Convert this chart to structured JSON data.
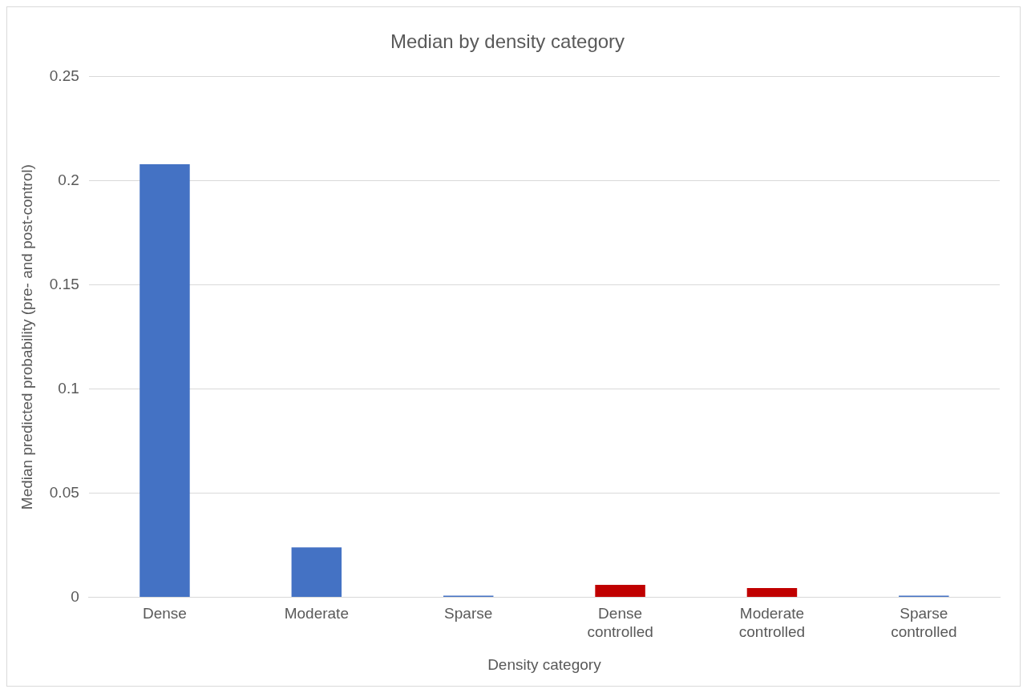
{
  "chart_data": {
    "type": "bar",
    "title": "Median by density category",
    "xlabel": "Density category",
    "ylabel": "Median predicted probability (pre- and post-control)",
    "categories": [
      "Dense",
      "Moderate",
      "Sparse",
      "Dense controlled",
      "Moderate controlled",
      "Sparse controlled"
    ],
    "values": [
      0.208,
      0.024,
      0.0008,
      0.006,
      0.0045,
      0.0008
    ],
    "colors": [
      "#4472c4",
      "#4472c4",
      "#4472c4",
      "#c00000",
      "#c00000",
      "#4472c4"
    ],
    "ylim": [
      0,
      0.25
    ],
    "yticks": [
      0,
      0.05,
      0.1,
      0.15,
      0.2,
      0.25
    ],
    "grid": "y",
    "legend": false
  }
}
